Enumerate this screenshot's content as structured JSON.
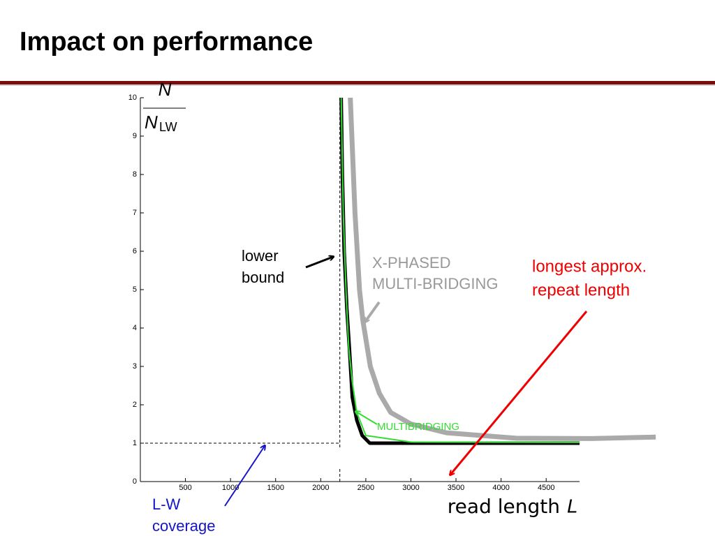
{
  "title": "Impact on performance",
  "chart_data": {
    "type": "line",
    "xlim": [
      0,
      4870
    ],
    "ylim": [
      0,
      10
    ],
    "xticks": [
      500,
      1000,
      1500,
      2000,
      2500,
      3000,
      3500,
      4000,
      4500
    ],
    "yticks": [
      0,
      1,
      2,
      3,
      4,
      5,
      6,
      7,
      8,
      9,
      10
    ],
    "ylabel": {
      "numerator": "N",
      "denominator": "N",
      "subscript": "LW"
    },
    "xlabel": {
      "text": "read length",
      "symbol": "L"
    },
    "series": [
      {
        "color": "#aaaaaa",
        "width": 7,
        "x": [
          2328,
          2380,
          2430,
          2467,
          2550,
          2650,
          2776,
          3000,
          3395,
          4168,
          5000,
          5715
        ],
        "values": [
          10,
          7,
          5,
          4.2,
          3,
          2.3,
          1.8,
          1.5,
          1.27,
          1.13,
          1.12,
          1.16
        ]
      },
      {
        "color": "#000000",
        "width": 5,
        "x": [
          2227,
          2240,
          2260,
          2290,
          2320,
          2350,
          2400,
          2460,
          2544,
          3000,
          4870
        ],
        "values": [
          10,
          8,
          6,
          4.5,
          3.4,
          2.2,
          1.6,
          1.2,
          1.0,
          1.0,
          1.0
        ]
      },
      {
        "color": "#33dd33",
        "width": 2,
        "x": [
          2227,
          2250,
          2280,
          2310,
          2350,
          2400,
          2500,
          3000,
          4870
        ],
        "values": [
          10,
          7,
          5,
          3.5,
          2.6,
          1.8,
          1.2,
          1.03,
          1.02
        ]
      }
    ],
    "reference_lines": {
      "x": 2212,
      "y": 1
    },
    "annotations": {
      "lower_bound": [
        "lower",
        "bound"
      ],
      "x_phased": [
        "X-PHASED",
        "MULTI-BRIDGING"
      ],
      "repeat": [
        "longest approx.",
        "repeat length"
      ],
      "multibridging": "MULTIBRIDGING",
      "lw": [
        "L-W",
        "coverage"
      ]
    }
  }
}
